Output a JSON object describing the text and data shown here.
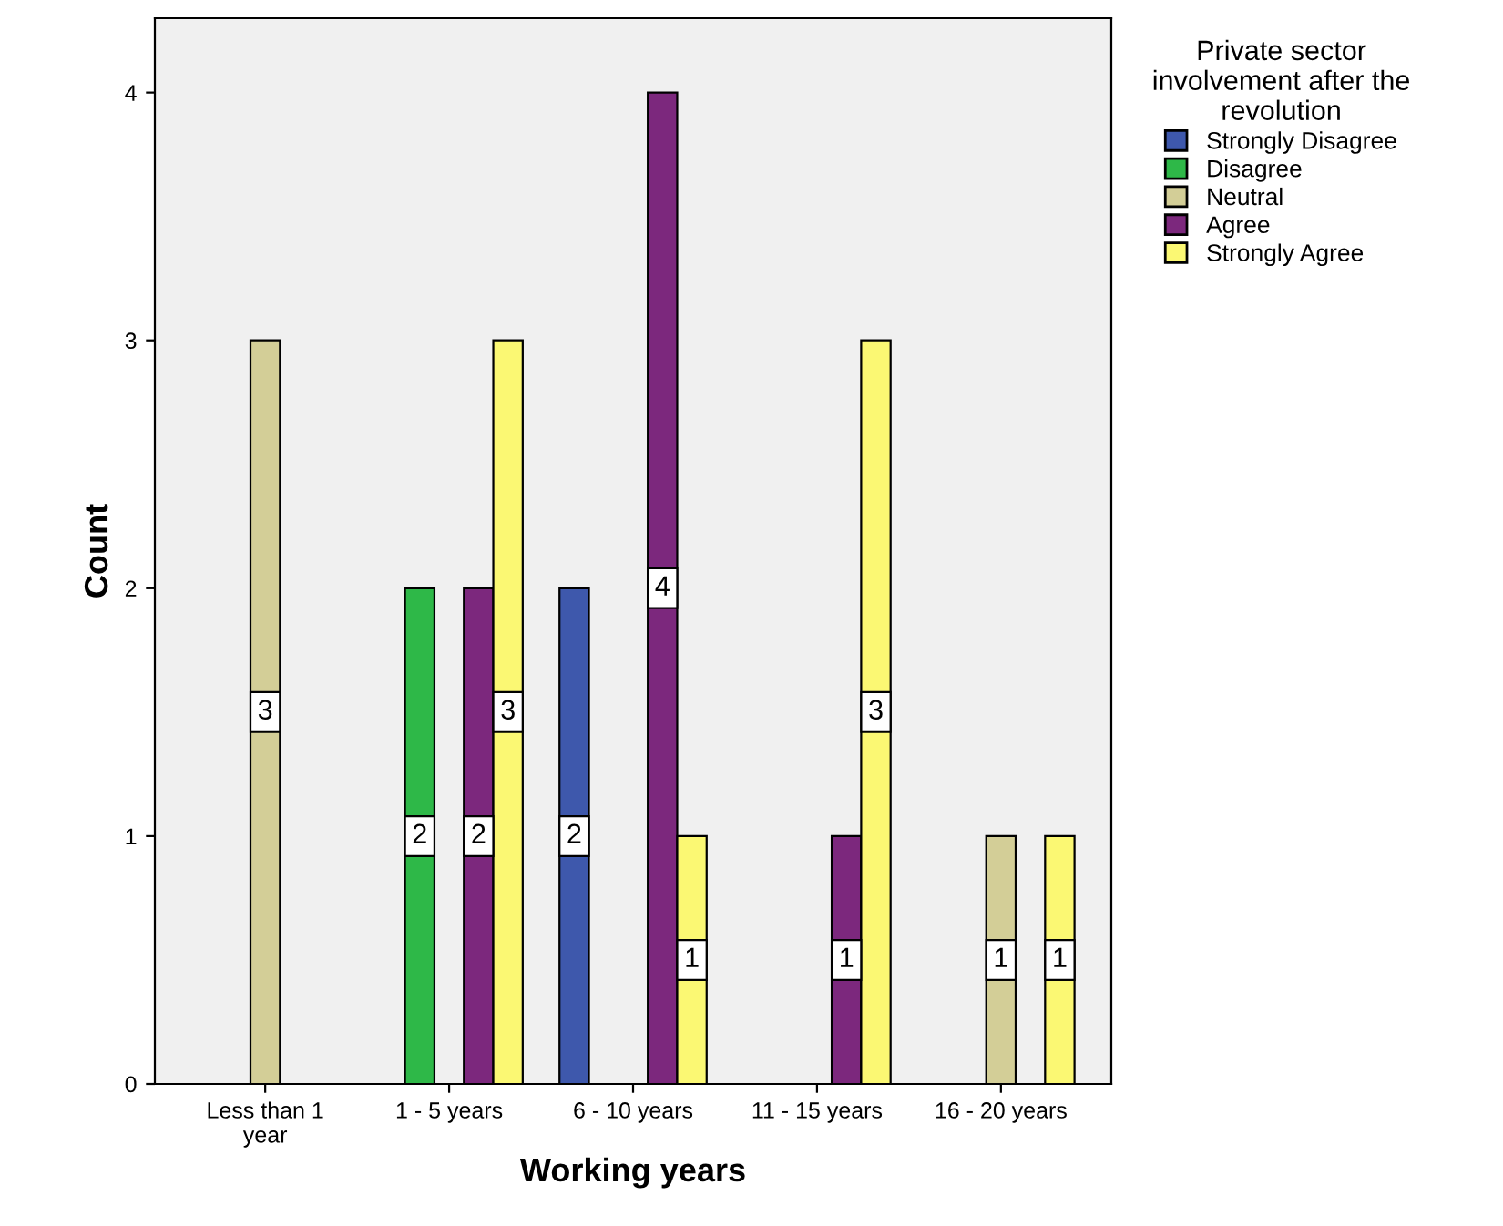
{
  "chart_data": {
    "type": "bar",
    "xlabel": "Working years",
    "ylabel": "Count",
    "legend_title": "Private sector\ninvolvement after the\nrevolution",
    "categories": [
      "Less than 1\nyear",
      "1 - 5 years",
      "6 - 10 years",
      "11 - 15 years",
      "16 - 20 years"
    ],
    "series": [
      {
        "name": "Strongly Disagree",
        "color": "#3e58ac",
        "values": [
          null,
          null,
          2,
          null,
          null
        ]
      },
      {
        "name": "Disagree",
        "color": "#2eb848",
        "values": [
          null,
          2,
          null,
          null,
          null
        ]
      },
      {
        "name": "Neutral",
        "color": "#d3ce97",
        "values": [
          3,
          null,
          null,
          null,
          1
        ]
      },
      {
        "name": "Agree",
        "color": "#7c287d",
        "values": [
          null,
          2,
          4,
          1,
          null
        ]
      },
      {
        "name": "Strongly Agree",
        "color": "#fbf873",
        "values": [
          null,
          3,
          1,
          3,
          1
        ]
      }
    ],
    "ylim": [
      0,
      4.3
    ],
    "yticks": [
      0,
      1,
      2,
      3,
      4
    ],
    "grid": false,
    "legend": "right",
    "data_labels": true
  }
}
